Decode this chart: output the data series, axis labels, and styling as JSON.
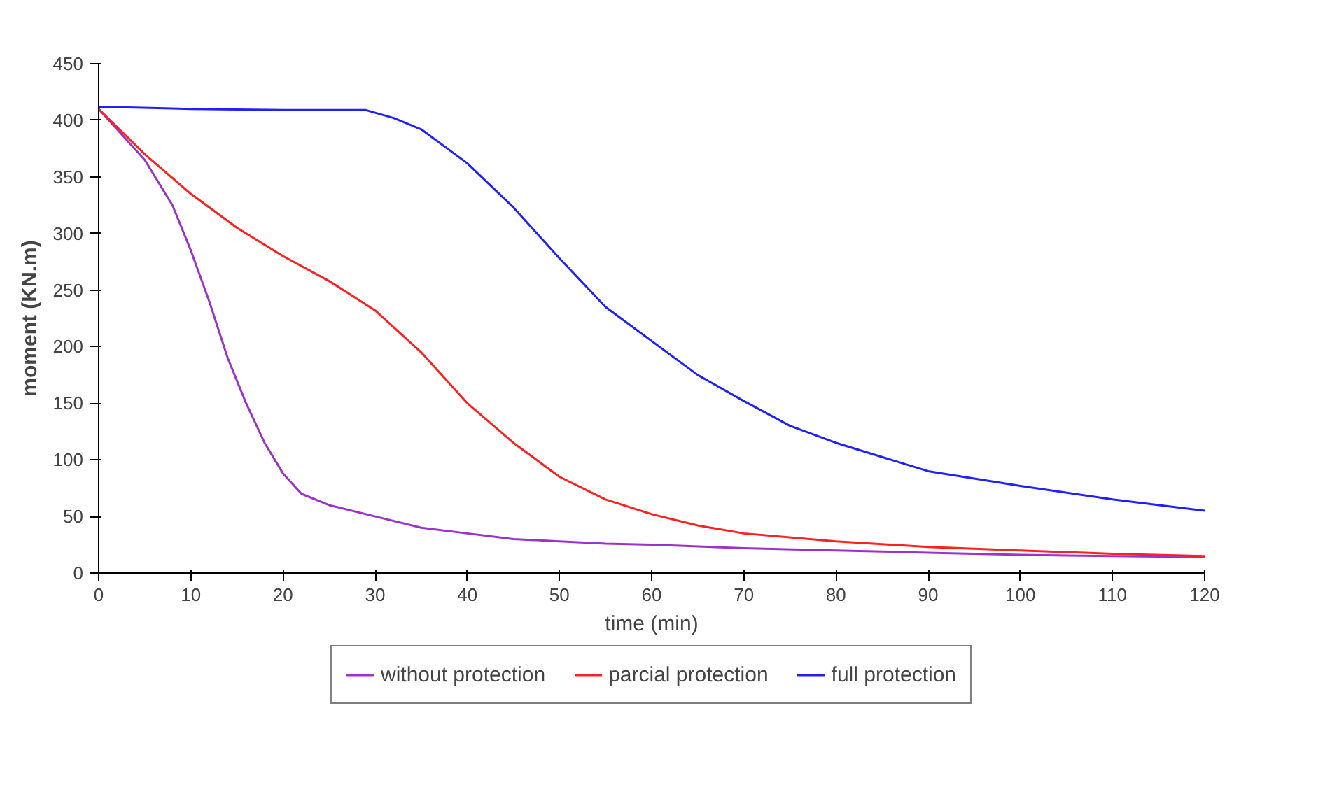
{
  "chart_data": {
    "type": "line",
    "xlabel": "time (min)",
    "ylabel": "moment (KN.m)",
    "xlim": [
      0,
      120
    ],
    "xticks": [
      0,
      10,
      20,
      30,
      40,
      50,
      60,
      70,
      80,
      90,
      100,
      110,
      120
    ],
    "ylim": [
      0,
      450
    ],
    "yticks": [
      0,
      50,
      100,
      150,
      200,
      250,
      300,
      350,
      400,
      450
    ],
    "grid": false,
    "legend": "bottom",
    "marker": "none",
    "line_style": "solid",
    "series": [
      {
        "name": "without protection",
        "color": "#9933cc",
        "x": [
          0,
          5,
          8,
          10,
          12,
          14,
          16,
          18,
          20,
          22,
          25,
          30,
          35,
          40,
          45,
          50,
          55,
          60,
          70,
          80,
          90,
          100,
          110,
          120
        ],
        "values": [
          410,
          365,
          325,
          285,
          240,
          190,
          150,
          115,
          88,
          70,
          60,
          50,
          40,
          35,
          30,
          28,
          26,
          25,
          22,
          20,
          18,
          16,
          15,
          14
        ]
      },
      {
        "name": "parcial protection",
        "color": "#ff2020",
        "x": [
          0,
          5,
          10,
          15,
          20,
          25,
          30,
          35,
          40,
          45,
          50,
          55,
          60,
          65,
          70,
          80,
          90,
          100,
          110,
          120
        ],
        "values": [
          410,
          370,
          335,
          305,
          280,
          258,
          232,
          195,
          150,
          115,
          85,
          65,
          52,
          42,
          35,
          28,
          23,
          20,
          17,
          15
        ]
      },
      {
        "name": "full protection",
        "color": "#2020ff",
        "x": [
          0,
          10,
          20,
          29,
          32,
          35,
          40,
          45,
          50,
          55,
          60,
          65,
          70,
          75,
          80,
          90,
          100,
          110,
          120
        ],
        "values": [
          412,
          410,
          409,
          409,
          402,
          392,
          362,
          323,
          278,
          235,
          205,
          175,
          152,
          130,
          115,
          90,
          77,
          65,
          55
        ]
      }
    ]
  }
}
